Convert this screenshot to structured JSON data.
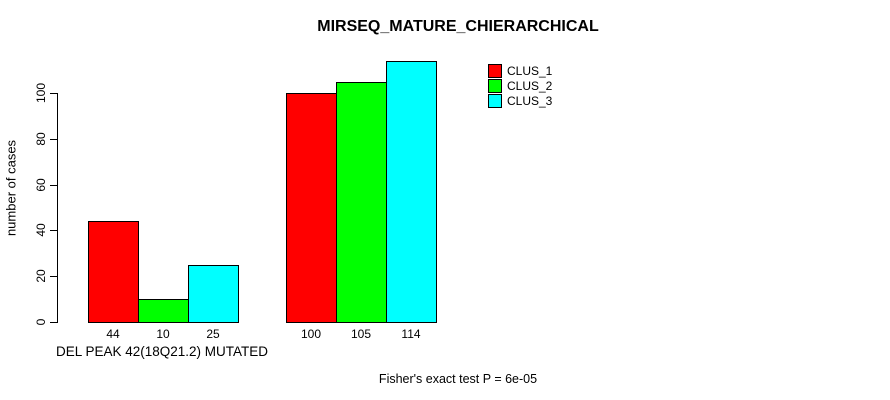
{
  "title": "MIRSEQ_MATURE_CHIERARCHICAL",
  "footer": "Fisher's exact test P = 6e-05",
  "chart_data": {
    "type": "bar",
    "title": "MIRSEQ_MATURE_CHIERARCHICAL",
    "xlabel": "DEL PEAK 42(18Q21.2) MUTATED",
    "ylabel": "number of cases",
    "categories": [
      "DEL PEAK 42(18Q21.2) MUTATED",
      ""
    ],
    "series": [
      {
        "name": "CLUS_1",
        "color": "#ff0000",
        "values": [
          44,
          100
        ]
      },
      {
        "name": "CLUS_2",
        "color": "#00ff00",
        "values": [
          10,
          105
        ]
      },
      {
        "name": "CLUS_3",
        "color": "#00ffff",
        "values": [
          25,
          114
        ]
      }
    ],
    "bar_value_labels": [
      [
        "44",
        "10",
        "25"
      ],
      [
        "100",
        "105",
        "114"
      ]
    ],
    "yticks": [
      0,
      20,
      40,
      60,
      80,
      100
    ],
    "ylim": [
      0,
      114
    ],
    "grid": false,
    "legend_position": "top-right",
    "legend_entries": [
      "CLUS_1",
      "CLUS_2",
      "CLUS_3"
    ],
    "annotation": "Fisher's exact test P = 6e-05",
    "bar_border_color": "#000000",
    "background_color": "#ffffff"
  }
}
